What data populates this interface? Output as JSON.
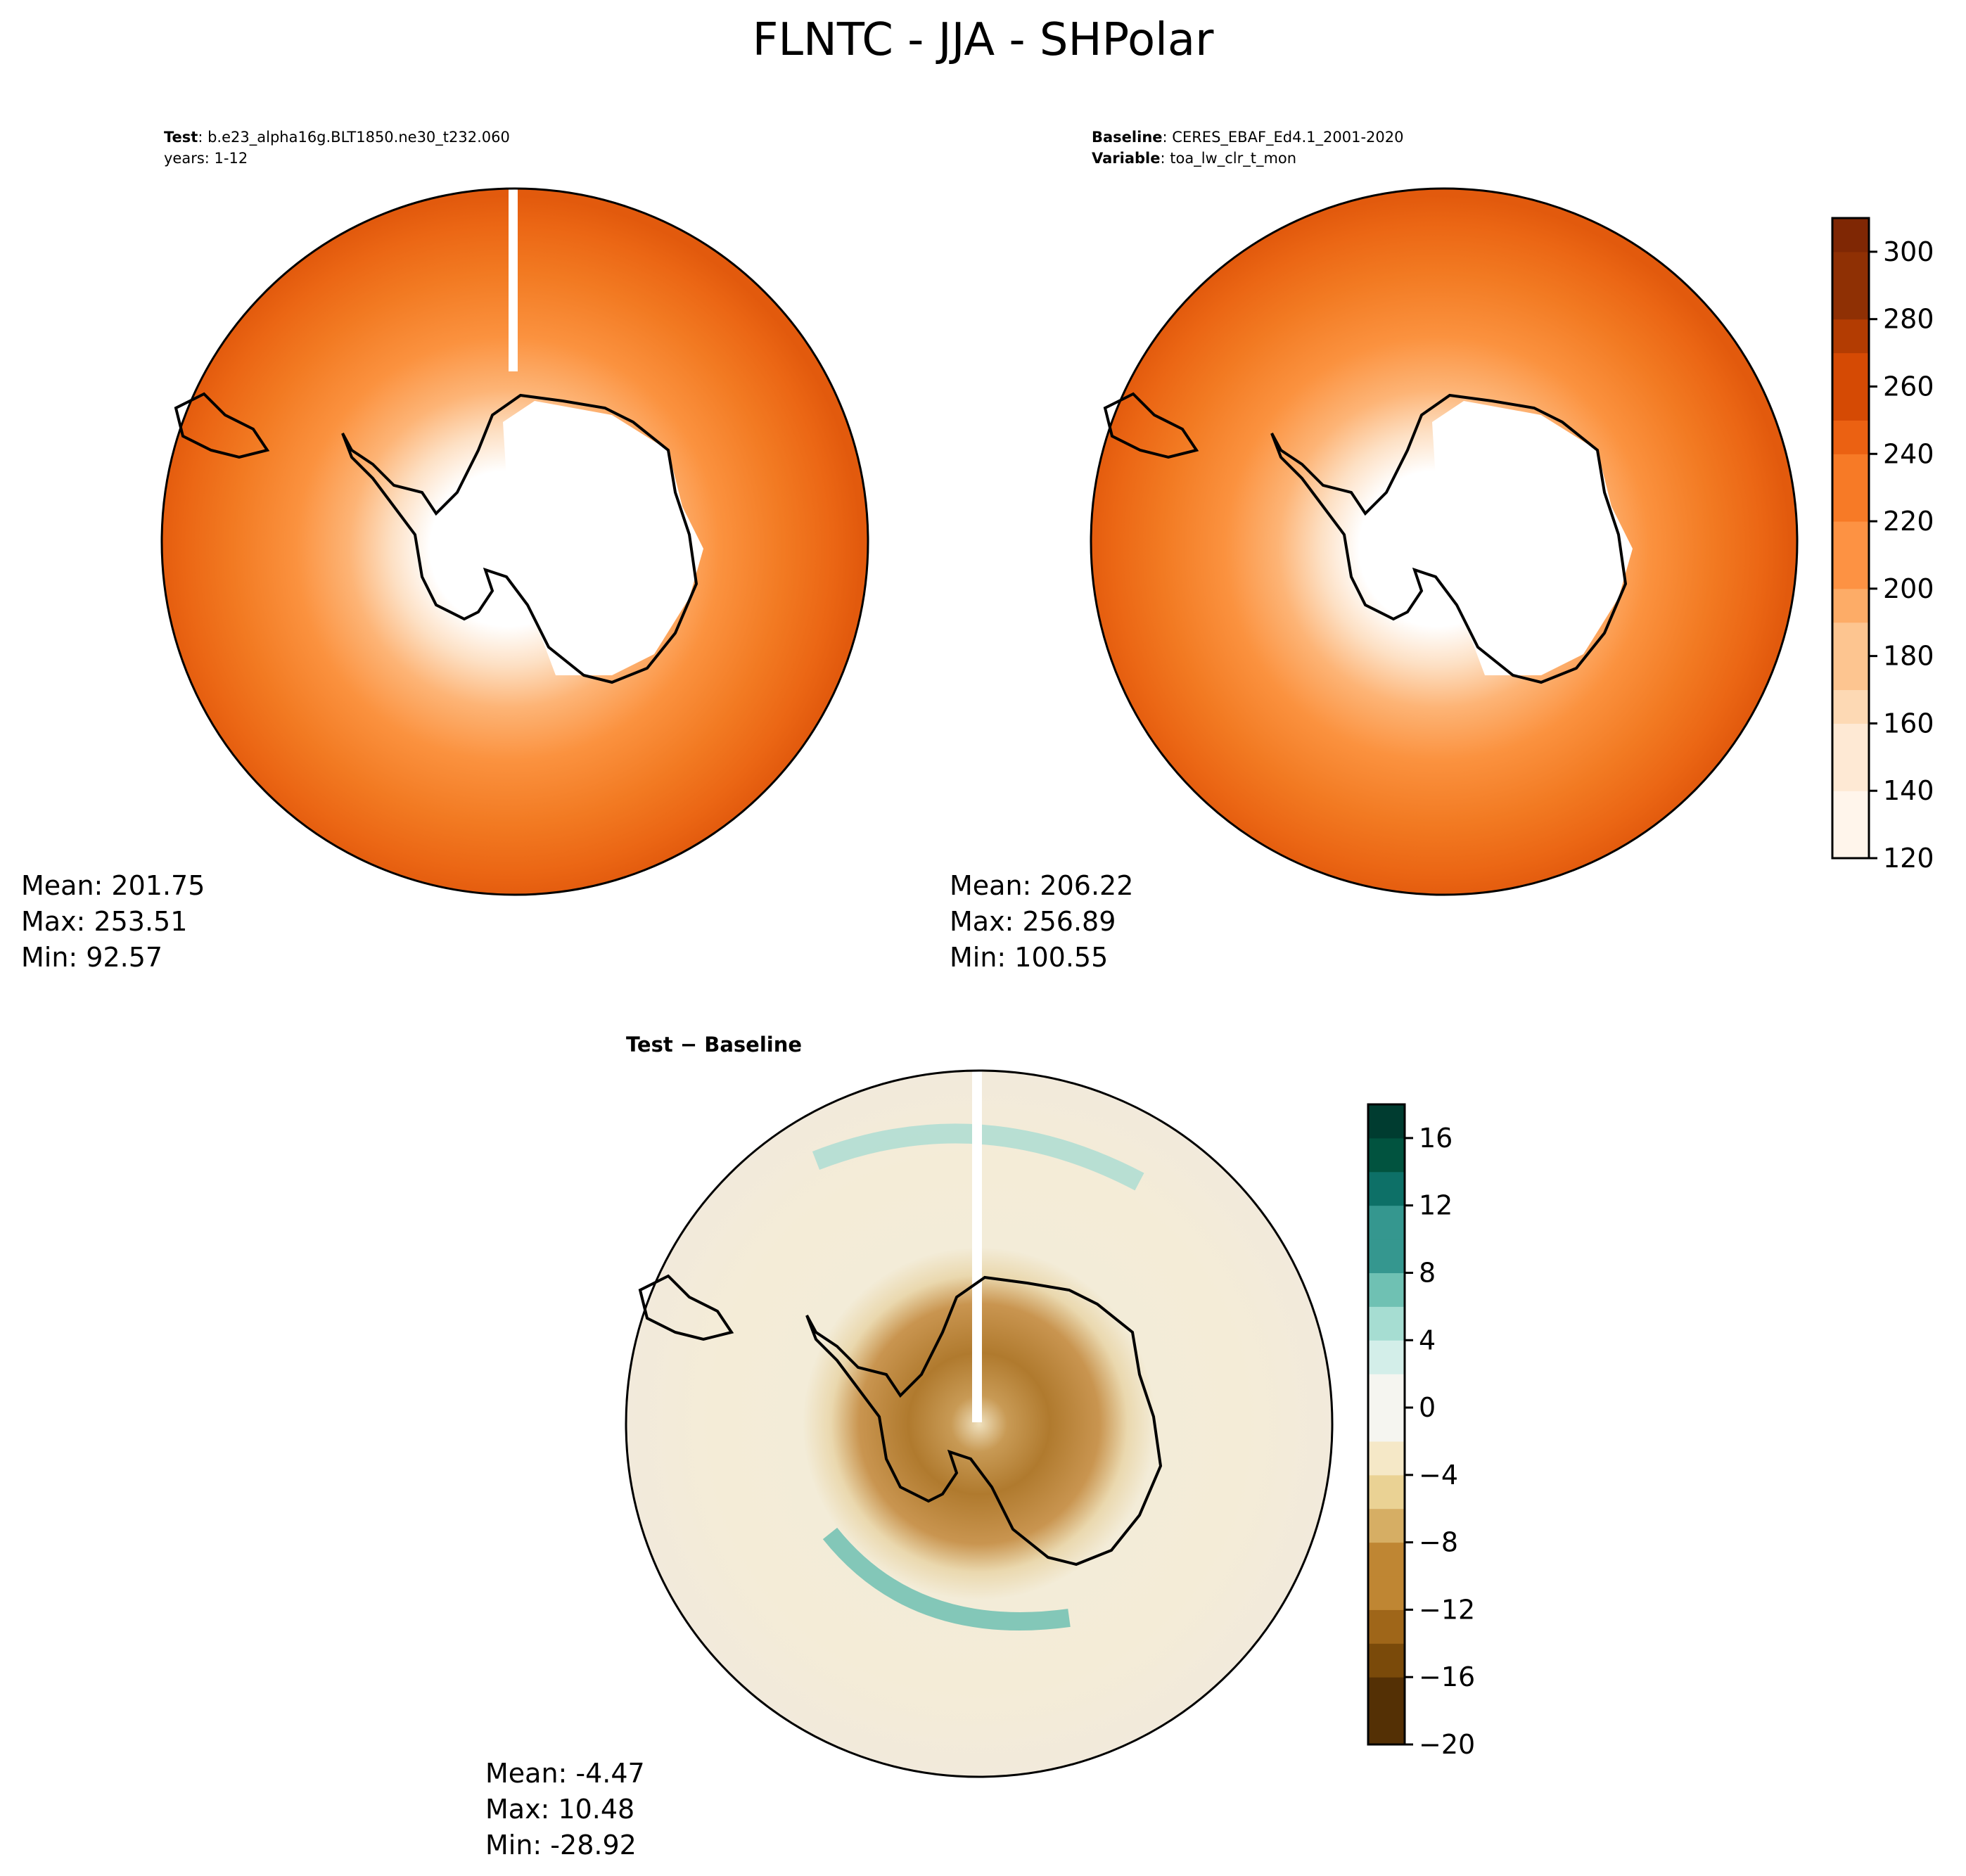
{
  "figure": {
    "title": "FLNTC - JJA - SHPolar"
  },
  "panels": {
    "test": {
      "label": "Test",
      "case": "b.e23_alpha16g.BLT1850.ne30_t232.060",
      "years": "years: 1-12",
      "stats": {
        "mean": "Mean: 201.75",
        "max": "Max: 253.51",
        "min": "Min: 92.57"
      }
    },
    "baseline": {
      "label": "Baseline",
      "case": "CERES_EBAF_Ed4.1_2001-2020",
      "variable_label": "Variable",
      "variable": "toa_lw_clr_t_mon",
      "stats": {
        "mean": "Mean: 206.22",
        "max": "Max: 256.89",
        "min": "Min: 100.55"
      }
    },
    "diff": {
      "title": "Test − Baseline",
      "stats": {
        "mean": "Mean: -4.47",
        "max": "Max: 10.48",
        "min": "Min: -28.92"
      }
    }
  },
  "chart_data": [
    {
      "type": "heatmap",
      "name": "Test",
      "projection": "south-polar-stereographic",
      "colormap": "Oranges",
      "levels": [
        120,
        130,
        140,
        150,
        160,
        170,
        180,
        190,
        200,
        210,
        220,
        230,
        240,
        250,
        260,
        270,
        280,
        290,
        300,
        310
      ],
      "colorbar_ticks": [
        120,
        140,
        160,
        180,
        200,
        220,
        240,
        260,
        280,
        300
      ],
      "stats": {
        "mean": 201.75,
        "max": 253.51,
        "min": 92.57
      }
    },
    {
      "type": "heatmap",
      "name": "Baseline",
      "projection": "south-polar-stereographic",
      "colormap": "Oranges",
      "levels": [
        120,
        130,
        140,
        150,
        160,
        170,
        180,
        190,
        200,
        210,
        220,
        230,
        240,
        250,
        260,
        270,
        280,
        290,
        300,
        310
      ],
      "colorbar_ticks": [
        120,
        140,
        160,
        180,
        200,
        220,
        240,
        260,
        280,
        300
      ],
      "stats": {
        "mean": 206.22,
        "max": 256.89,
        "min": 100.55
      }
    },
    {
      "type": "heatmap",
      "name": "Test − Baseline",
      "projection": "south-polar-stereographic",
      "colormap": "BrBG",
      "levels": [
        -20,
        -18,
        -16,
        -14,
        -12,
        -10,
        -8,
        -6,
        -4,
        -2,
        0,
        2,
        4,
        6,
        8,
        10,
        12,
        14,
        16,
        18
      ],
      "colorbar_ticks": [
        "−20",
        "−16",
        "−12",
        "−8",
        "−4",
        "0",
        "4",
        "8",
        "12",
        "16"
      ],
      "stats": {
        "mean": -4.47,
        "max": 10.48,
        "min": -28.92
      }
    }
  ],
  "colors": {
    "oranges": [
      "#fff5eb",
      "#fee9d4",
      "#fdd9b4",
      "#fdc590",
      "#fdac67",
      "#fd9243",
      "#f77a26",
      "#eb6112",
      "#d54a04",
      "#b33c02",
      "#8f3004",
      "#7f2704"
    ],
    "brbg": [
      "#543005",
      "#7a4a0a",
      "#9f6619",
      "#bf8633",
      "#d6ae64",
      "#ead294",
      "#f5e8c7",
      "#f5f5f0",
      "#d3eee9",
      "#a6ddd2",
      "#6fc1b3",
      "#35978f",
      "#0d7067",
      "#01533f",
      "#003c30"
    ]
  }
}
